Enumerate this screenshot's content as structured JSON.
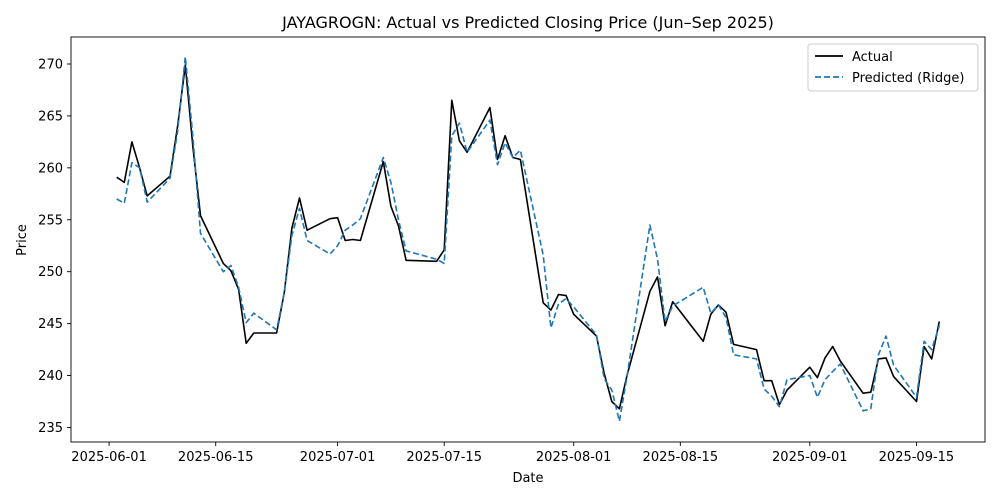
{
  "chart_data": {
    "type": "line",
    "title": "JAYAGROGN: Actual vs Predicted Closing Price (Jun–Sep 2025)",
    "xlabel": "Date",
    "ylabel": "Price",
    "x_ticks": [
      "2025-06-01",
      "2025-06-15",
      "2025-07-01",
      "2025-07-15",
      "2025-08-01",
      "2025-08-15",
      "2025-09-01",
      "2025-09-15"
    ],
    "y_ticks": [
      235,
      240,
      245,
      250,
      255,
      260,
      265,
      270
    ],
    "xlim": [
      "2025-05-27",
      "2025-09-24"
    ],
    "ylim": [
      233.6,
      272.6
    ],
    "legend_position": "top-right",
    "colors": {
      "actual": "#000000",
      "predicted": "#1f77b4"
    },
    "series": [
      {
        "name": "Actual",
        "style": "solid",
        "x": [
          "2025-06-02",
          "2025-06-03",
          "2025-06-04",
          "2025-06-05",
          "2025-06-06",
          "2025-06-09",
          "2025-06-10",
          "2025-06-11",
          "2025-06-12",
          "2025-06-13",
          "2025-06-16",
          "2025-06-17",
          "2025-06-18",
          "2025-06-19",
          "2025-06-20",
          "2025-06-23",
          "2025-06-24",
          "2025-06-25",
          "2025-06-26",
          "2025-06-27",
          "2025-06-30",
          "2025-07-01",
          "2025-07-02",
          "2025-07-03",
          "2025-07-04",
          "2025-07-07",
          "2025-07-08",
          "2025-07-09",
          "2025-07-10",
          "2025-07-14",
          "2025-07-15",
          "2025-07-16",
          "2025-07-17",
          "2025-07-18",
          "2025-07-21",
          "2025-07-22",
          "2025-07-23",
          "2025-07-24",
          "2025-07-25",
          "2025-07-28",
          "2025-07-29",
          "2025-07-30",
          "2025-07-31",
          "2025-08-01",
          "2025-08-04",
          "2025-08-05",
          "2025-08-06",
          "2025-08-07",
          "2025-08-08",
          "2025-08-11",
          "2025-08-12",
          "2025-08-13",
          "2025-08-14",
          "2025-08-18",
          "2025-08-19",
          "2025-08-20",
          "2025-08-21",
          "2025-08-22",
          "2025-08-25",
          "2025-08-26",
          "2025-08-27",
          "2025-08-28",
          "2025-08-29",
          "2025-09-01",
          "2025-09-02",
          "2025-09-03",
          "2025-09-04",
          "2025-09-05",
          "2025-09-08",
          "2025-09-09",
          "2025-09-10",
          "2025-09-11",
          "2025-09-12",
          "2025-09-15",
          "2025-09-16",
          "2025-09-17",
          "2025-09-18"
        ],
        "y": [
          259.1,
          258.6,
          262.5,
          260.0,
          257.3,
          259.2,
          264.0,
          269.9,
          262.0,
          255.4,
          250.8,
          250.1,
          248.3,
          243.1,
          244.1,
          244.1,
          248.0,
          254.2,
          257.1,
          254.0,
          255.1,
          255.2,
          253.0,
          253.1,
          253.0,
          260.6,
          256.3,
          254.4,
          251.1,
          251.0,
          252.1,
          266.5,
          262.6,
          261.5,
          265.8,
          260.8,
          263.1,
          261.0,
          260.8,
          247.0,
          246.3,
          247.8,
          247.7,
          245.9,
          243.8,
          240.2,
          237.5,
          236.8,
          240.0,
          248.1,
          249.5,
          244.8,
          247.1,
          243.3,
          245.9,
          246.8,
          246.1,
          243.0,
          242.5,
          239.5,
          239.5,
          237.2,
          238.6,
          240.8,
          239.8,
          241.7,
          242.8,
          241.4,
          238.3,
          238.4,
          241.6,
          241.7,
          239.9,
          237.5,
          242.8,
          241.6,
          245.2
        ]
      },
      {
        "name": "Predicted (Ridge)",
        "style": "dashed",
        "x": [
          "2025-06-02",
          "2025-06-03",
          "2025-06-04",
          "2025-06-05",
          "2025-06-06",
          "2025-06-09",
          "2025-06-10",
          "2025-06-11",
          "2025-06-12",
          "2025-06-13",
          "2025-06-16",
          "2025-06-17",
          "2025-06-18",
          "2025-06-19",
          "2025-06-20",
          "2025-06-23",
          "2025-06-24",
          "2025-06-25",
          "2025-06-26",
          "2025-06-27",
          "2025-06-30",
          "2025-07-01",
          "2025-07-02",
          "2025-07-03",
          "2025-07-04",
          "2025-07-07",
          "2025-07-08",
          "2025-07-09",
          "2025-07-10",
          "2025-07-14",
          "2025-07-15",
          "2025-07-16",
          "2025-07-17",
          "2025-07-18",
          "2025-07-21",
          "2025-07-22",
          "2025-07-23",
          "2025-07-24",
          "2025-07-25",
          "2025-07-28",
          "2025-07-29",
          "2025-07-30",
          "2025-07-31",
          "2025-08-01",
          "2025-08-04",
          "2025-08-05",
          "2025-08-06",
          "2025-08-07",
          "2025-08-08",
          "2025-08-11",
          "2025-08-12",
          "2025-08-13",
          "2025-08-14",
          "2025-08-18",
          "2025-08-19",
          "2025-08-20",
          "2025-08-21",
          "2025-08-22",
          "2025-08-25",
          "2025-08-26",
          "2025-08-27",
          "2025-08-28",
          "2025-08-29",
          "2025-09-01",
          "2025-09-02",
          "2025-09-03",
          "2025-09-04",
          "2025-09-05",
          "2025-09-08",
          "2025-09-09",
          "2025-09-10",
          "2025-09-11",
          "2025-09-12",
          "2025-09-15",
          "2025-09-16",
          "2025-09-17",
          "2025-09-18"
        ],
        "y": [
          257.0,
          256.6,
          260.5,
          260.0,
          256.7,
          259.0,
          263.5,
          270.7,
          263.0,
          253.7,
          250.0,
          250.6,
          248.5,
          245.1,
          246.0,
          244.4,
          248.0,
          253.5,
          256.1,
          253.0,
          251.7,
          252.5,
          254.0,
          254.5,
          255.1,
          261.0,
          258.6,
          255.0,
          252.0,
          251.2,
          250.8,
          263.1,
          264.3,
          261.5,
          264.6,
          260.3,
          262.4,
          261.0,
          261.7,
          251.6,
          244.6,
          246.9,
          247.4,
          246.6,
          243.9,
          239.7,
          238.6,
          235.6,
          239.9,
          254.5,
          251.2,
          245.2,
          246.7,
          248.5,
          246.0,
          246.8,
          245.6,
          242.0,
          241.6,
          238.7,
          238.0,
          237.0,
          239.6,
          240.0,
          237.9,
          239.6,
          240.4,
          241.1,
          236.6,
          236.8,
          242.0,
          243.8,
          241.0,
          237.9,
          243.3,
          242.5,
          244.8
        ]
      }
    ]
  }
}
